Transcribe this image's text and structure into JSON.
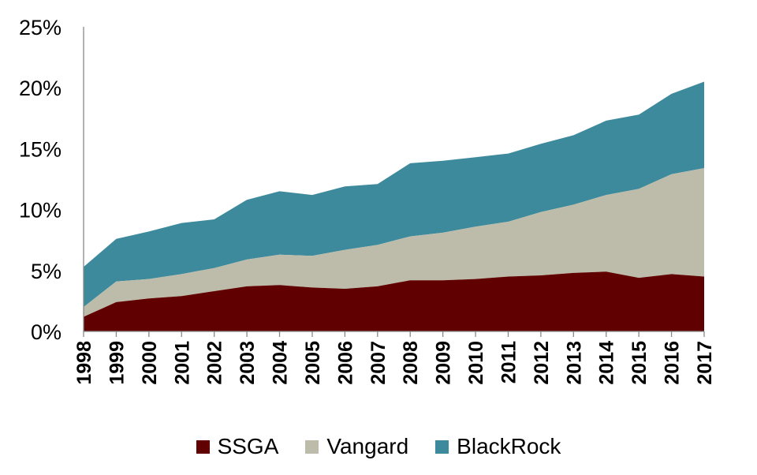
{
  "chart_data": {
    "type": "area",
    "stacked": true,
    "x": [
      "1998",
      "1999",
      "2000",
      "2001",
      "2002",
      "2003",
      "2004",
      "2005",
      "2006",
      "2007",
      "2008",
      "2009",
      "2010",
      "2011",
      "2012",
      "2013",
      "2014",
      "2015",
      "2016",
      "2017"
    ],
    "series": [
      {
        "name": "SSGA",
        "color": "#600000",
        "values": [
          1.2,
          2.4,
          2.7,
          2.9,
          3.3,
          3.7,
          3.8,
          3.6,
          3.5,
          3.7,
          4.2,
          4.2,
          4.3,
          4.5,
          4.6,
          4.8,
          4.9,
          4.4,
          4.7,
          4.5
        ]
      },
      {
        "name": "Vangard",
        "color": "#bdbcab",
        "values": [
          0.8,
          1.7,
          1.6,
          1.8,
          1.9,
          2.2,
          2.5,
          2.6,
          3.2,
          3.4,
          3.6,
          3.9,
          4.3,
          4.5,
          5.2,
          5.6,
          6.3,
          7.3,
          8.2,
          8.9
        ]
      },
      {
        "name": "BlackRock",
        "color": "#3d8a9c",
        "values": [
          3.3,
          3.5,
          3.9,
          4.2,
          4.0,
          4.9,
          5.2,
          5.0,
          5.2,
          5.0,
          6.0,
          5.9,
          5.7,
          5.6,
          5.6,
          5.7,
          6.1,
          6.1,
          6.6,
          7.1
        ]
      }
    ],
    "yticks": [
      "0%",
      "5%",
      "10%",
      "15%",
      "20%",
      "25%"
    ],
    "ylim": [
      0,
      25
    ],
    "legend_position": "bottom",
    "grid": false
  }
}
